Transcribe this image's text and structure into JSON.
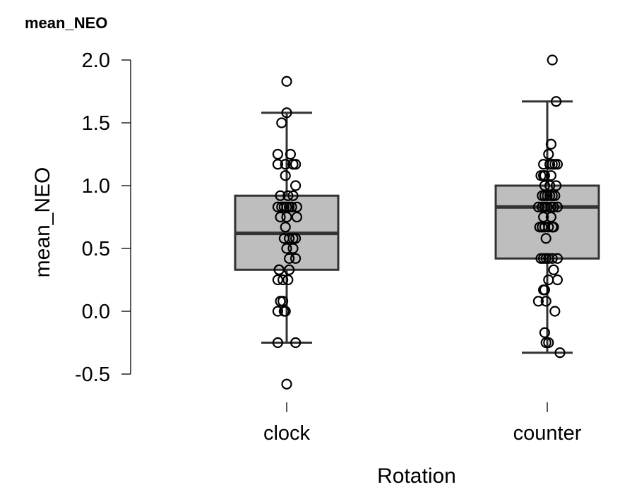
{
  "chart_data": {
    "type": "boxplot",
    "title": "mean_NEO",
    "xlabel": "Rotation",
    "ylabel": "mean_NEO",
    "ylim": [
      -0.5,
      2.0
    ],
    "yticks": [
      "2.0",
      "1.5",
      "1.0",
      "0.5",
      "0.0",
      "-0.5"
    ],
    "ytick_values": [
      2.0,
      1.5,
      1.0,
      0.5,
      0.0,
      -0.5
    ],
    "categories": [
      "clock",
      "counter"
    ],
    "grid": false,
    "box_fill": "#bebebe",
    "box_stroke": "#333333",
    "boxes": [
      {
        "category": "clock",
        "whisker_low": -0.25,
        "q1": 0.33,
        "median": 0.62,
        "q3": 0.92,
        "whisker_high": 1.58,
        "points": [
          [
            0.0,
            1.83
          ],
          [
            0.0,
            1.58
          ],
          [
            -0.04,
            1.5
          ],
          [
            -0.07,
            1.25
          ],
          [
            0.03,
            1.25
          ],
          [
            -0.07,
            1.17
          ],
          [
            -0.01,
            1.17
          ],
          [
            0.05,
            1.17
          ],
          [
            0.07,
            1.17
          ],
          [
            -0.01,
            1.08
          ],
          [
            0.07,
            1.0
          ],
          [
            -0.05,
            0.92
          ],
          [
            0.01,
            0.92
          ],
          [
            0.05,
            0.92
          ],
          [
            -0.07,
            0.83
          ],
          [
            -0.04,
            0.83
          ],
          [
            -0.02,
            0.83
          ],
          [
            0.0,
            0.83
          ],
          [
            0.02,
            0.83
          ],
          [
            0.04,
            0.83
          ],
          [
            0.08,
            0.83
          ],
          [
            -0.05,
            0.75
          ],
          [
            0.0,
            0.75
          ],
          [
            0.08,
            0.75
          ],
          [
            -0.01,
            0.67
          ],
          [
            -0.02,
            0.58
          ],
          [
            0.02,
            0.58
          ],
          [
            0.05,
            0.58
          ],
          [
            0.07,
            0.58
          ],
          [
            0.0,
            0.5
          ],
          [
            0.05,
            0.5
          ],
          [
            0.07,
            0.42
          ],
          [
            0.02,
            0.42
          ],
          [
            -0.06,
            0.33
          ],
          [
            -0.06,
            0.33
          ],
          [
            0.02,
            0.33
          ],
          [
            -0.07,
            0.25
          ],
          [
            -0.03,
            0.25
          ],
          [
            0.01,
            0.25
          ],
          [
            -0.05,
            0.08
          ],
          [
            -0.03,
            0.08
          ],
          [
            -0.07,
            0.0
          ],
          [
            -0.02,
            0.0
          ],
          [
            -0.01,
            0.0
          ],
          [
            -0.07,
            -0.25
          ],
          [
            0.07,
            -0.25
          ],
          [
            0.0,
            -0.58
          ]
        ]
      },
      {
        "category": "counter",
        "whisker_low": -0.33,
        "q1": 0.42,
        "median": 0.83,
        "q3": 1.0,
        "whisker_high": 1.67,
        "points": [
          [
            0.04,
            2.0
          ],
          [
            0.07,
            1.67
          ],
          [
            0.03,
            1.33
          ],
          [
            0.01,
            1.25
          ],
          [
            0.04,
            1.17
          ],
          [
            0.06,
            1.17
          ],
          [
            -0.03,
            1.17
          ],
          [
            0.02,
            1.17
          ],
          [
            0.08,
            1.17
          ],
          [
            -0.05,
            1.08
          ],
          [
            -0.03,
            1.08
          ],
          [
            -0.02,
            1.08
          ],
          [
            0.03,
            1.08
          ],
          [
            -0.02,
            1.0
          ],
          [
            0.02,
            1.0
          ],
          [
            0.07,
            1.0
          ],
          [
            -0.04,
            0.92
          ],
          [
            -0.02,
            0.92
          ],
          [
            0.0,
            0.92
          ],
          [
            0.02,
            0.92
          ],
          [
            0.04,
            0.92
          ],
          [
            0.06,
            0.92
          ],
          [
            -0.07,
            0.83
          ],
          [
            -0.04,
            0.83
          ],
          [
            -0.02,
            0.83
          ],
          [
            0.0,
            0.83
          ],
          [
            0.03,
            0.83
          ],
          [
            0.05,
            0.83
          ],
          [
            0.08,
            0.83
          ],
          [
            -0.03,
            0.75
          ],
          [
            0.03,
            0.75
          ],
          [
            -0.06,
            0.67
          ],
          [
            -0.04,
            0.67
          ],
          [
            -0.02,
            0.67
          ],
          [
            0.01,
            0.67
          ],
          [
            0.04,
            0.67
          ],
          [
            0.05,
            0.67
          ],
          [
            -0.01,
            0.58
          ],
          [
            -0.05,
            0.42
          ],
          [
            -0.03,
            0.42
          ],
          [
            -0.01,
            0.42
          ],
          [
            0.01,
            0.42
          ],
          [
            0.04,
            0.42
          ],
          [
            0.08,
            0.42
          ],
          [
            0.05,
            0.33
          ],
          [
            0.01,
            0.25
          ],
          [
            0.08,
            0.25
          ],
          [
            -0.03,
            0.17
          ],
          [
            -0.02,
            0.17
          ],
          [
            -0.07,
            0.08
          ],
          [
            -0.01,
            0.08
          ],
          [
            0.06,
            0.0
          ],
          [
            -0.02,
            -0.17
          ],
          [
            -0.01,
            -0.25
          ],
          [
            0.01,
            -0.25
          ],
          [
            0.1,
            -0.33
          ]
        ]
      }
    ]
  }
}
